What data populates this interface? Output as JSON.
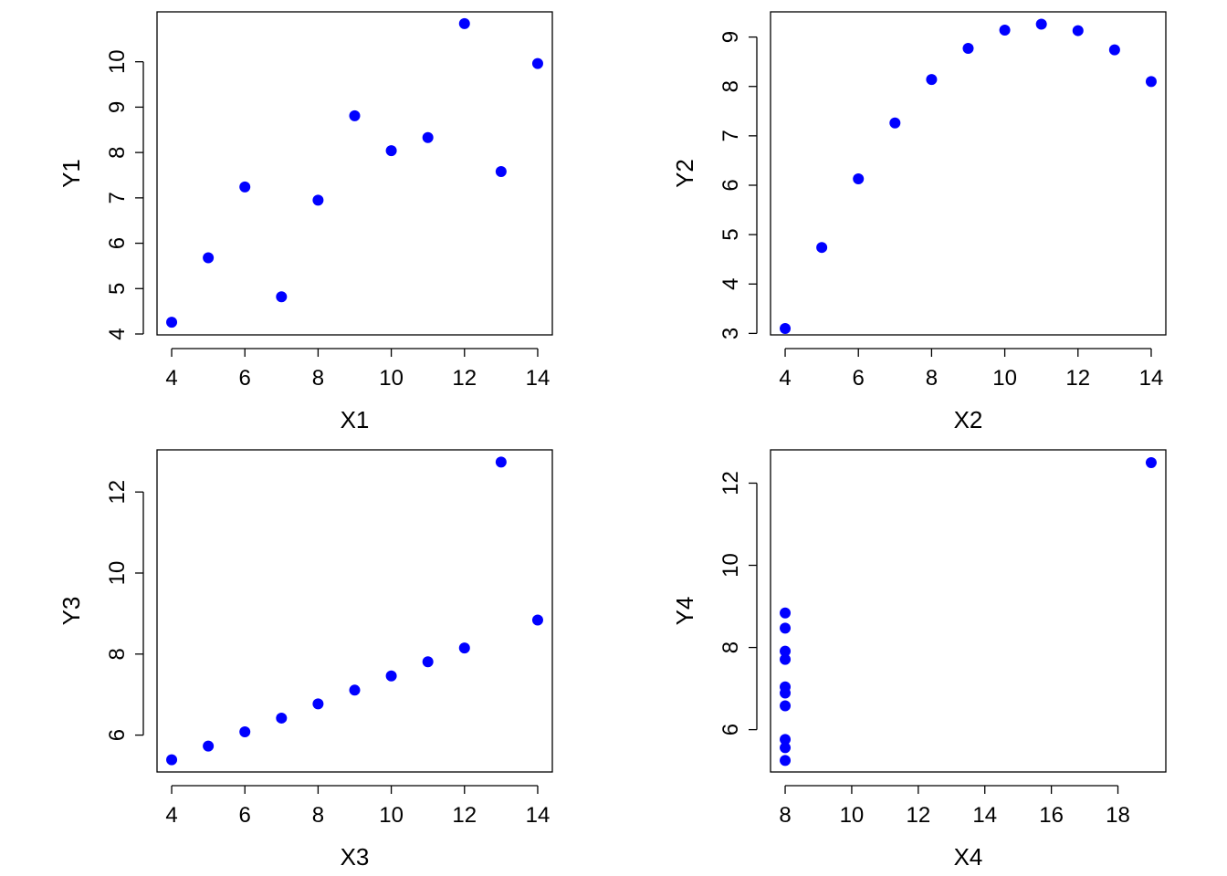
{
  "colors": {
    "point": "#0000ff",
    "axis": "#000000",
    "background": "#ffffff"
  },
  "chart_data": [
    {
      "type": "scatter",
      "xlabel": "X1",
      "ylabel": "Y1",
      "xlim": [
        3.6,
        14.4
      ],
      "ylim": [
        3.98,
        11.1
      ],
      "xticks": [
        4,
        6,
        8,
        10,
        12,
        14
      ],
      "yticks": [
        4,
        5,
        6,
        7,
        8,
        9,
        10
      ],
      "grid": false,
      "x": [
        10,
        8,
        13,
        9,
        11,
        14,
        6,
        4,
        12,
        7,
        5
      ],
      "y": [
        8.04,
        6.95,
        7.58,
        8.81,
        8.33,
        9.96,
        7.24,
        4.26,
        10.84,
        4.82,
        5.68
      ]
    },
    {
      "type": "scatter",
      "xlabel": "X2",
      "ylabel": "Y2",
      "xlim": [
        3.6,
        14.4
      ],
      "ylim": [
        2.97,
        9.51
      ],
      "xticks": [
        4,
        6,
        8,
        10,
        12,
        14
      ],
      "yticks": [
        3,
        4,
        5,
        6,
        7,
        8,
        9
      ],
      "grid": false,
      "x": [
        10,
        8,
        13,
        9,
        11,
        14,
        6,
        4,
        12,
        7,
        5
      ],
      "y": [
        9.14,
        8.14,
        8.74,
        8.77,
        9.26,
        8.1,
        6.13,
        3.1,
        9.13,
        7.26,
        4.74
      ]
    },
    {
      "type": "scatter",
      "xlabel": "X3",
      "ylabel": "Y3",
      "xlim": [
        3.6,
        14.4
      ],
      "ylim": [
        5.09,
        13.04
      ],
      "xticks": [
        4,
        6,
        8,
        10,
        12,
        14
      ],
      "yticks": [
        6,
        8,
        10,
        12
      ],
      "grid": false,
      "x": [
        10,
        8,
        13,
        9,
        11,
        14,
        6,
        4,
        12,
        7,
        5
      ],
      "y": [
        7.46,
        6.77,
        12.74,
        7.11,
        7.81,
        8.84,
        6.08,
        5.39,
        8.15,
        6.42,
        5.73
      ]
    },
    {
      "type": "scatter",
      "xlabel": "X4",
      "ylabel": "Y4",
      "xlim": [
        7.56,
        19.44
      ],
      "ylim": [
        4.97,
        12.81
      ],
      "xticks": [
        8,
        10,
        12,
        14,
        16,
        18
      ],
      "yticks": [
        6,
        8,
        10,
        12
      ],
      "grid": false,
      "x": [
        8,
        8,
        8,
        8,
        8,
        8,
        8,
        19,
        8,
        8,
        8
      ],
      "y": [
        6.58,
        5.76,
        7.71,
        8.84,
        8.47,
        7.04,
        5.25,
        12.5,
        5.56,
        7.91,
        6.89
      ]
    }
  ]
}
